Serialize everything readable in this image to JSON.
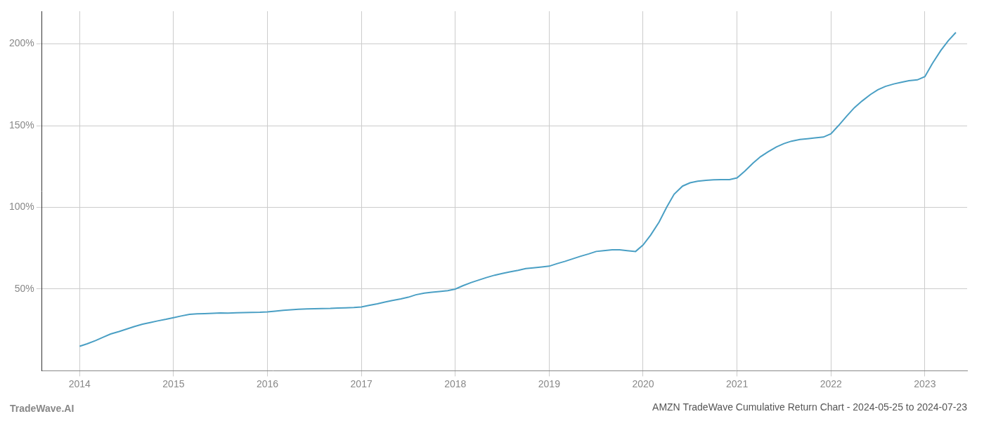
{
  "chart_data": {
    "type": "line",
    "title": "AMZN TradeWave Cumulative Return Chart - 2024-05-25 to 2024-07-23",
    "annotations": [
      "TradeWave.AI"
    ],
    "color": "#4a9fc4",
    "grid": true,
    "xlim": [
      2013.6,
      2023.45
    ],
    "xticks": [
      2014,
      2015,
      2016,
      2017,
      2018,
      2019,
      2020,
      2021,
      2022,
      2023
    ],
    "ylim": [
      0,
      220
    ],
    "yticks": [
      {
        "value": 50,
        "label": "50%"
      },
      {
        "value": 100,
        "label": "100%"
      },
      {
        "value": 150,
        "label": "150%"
      },
      {
        "value": 200,
        "label": "200%"
      }
    ],
    "x": [
      2014.0,
      2014.08,
      2014.17,
      2014.25,
      2014.33,
      2014.42,
      2014.5,
      2014.58,
      2014.67,
      2014.75,
      2014.83,
      2014.92,
      2015.0,
      2015.08,
      2015.17,
      2015.25,
      2015.33,
      2015.42,
      2015.5,
      2015.58,
      2015.67,
      2015.75,
      2015.83,
      2015.92,
      2016.0,
      2016.08,
      2016.17,
      2016.25,
      2016.33,
      2016.42,
      2016.5,
      2016.58,
      2016.67,
      2016.75,
      2016.83,
      2016.92,
      2017.0,
      2017.08,
      2017.17,
      2017.25,
      2017.33,
      2017.42,
      2017.5,
      2017.58,
      2017.67,
      2017.75,
      2017.83,
      2017.92,
      2018.0,
      2018.08,
      2018.17,
      2018.25,
      2018.33,
      2018.42,
      2018.5,
      2018.58,
      2018.67,
      2018.75,
      2018.83,
      2018.92,
      2019.0,
      2019.08,
      2019.17,
      2019.25,
      2019.33,
      2019.42,
      2019.5,
      2019.58,
      2019.67,
      2019.75,
      2019.83,
      2019.92,
      2020.0,
      2020.08,
      2020.17,
      2020.25,
      2020.33,
      2020.42,
      2020.5,
      2020.58,
      2020.67,
      2020.75,
      2020.83,
      2020.92,
      2021.0,
      2021.08,
      2021.17,
      2021.25,
      2021.33,
      2021.42,
      2021.5,
      2021.58,
      2021.67,
      2021.75,
      2021.83,
      2021.92,
      2022.0,
      2022.08,
      2022.17,
      2022.25,
      2022.33,
      2022.42,
      2022.5,
      2022.58,
      2022.67,
      2022.75,
      2022.83,
      2022.92,
      2023.0,
      2023.08,
      2023.17,
      2023.25,
      2023.33
    ],
    "values": [
      15.0,
      16.5,
      18.5,
      20.5,
      22.5,
      24.0,
      25.5,
      27.0,
      28.5,
      29.5,
      30.5,
      31.5,
      32.5,
      33.5,
      34.5,
      34.8,
      35.0,
      35.2,
      35.4,
      35.3,
      35.5,
      35.6,
      35.7,
      35.8,
      36.0,
      36.5,
      37.0,
      37.3,
      37.6,
      37.8,
      38.0,
      38.1,
      38.2,
      38.4,
      38.5,
      38.7,
      39.0,
      40.0,
      41.0,
      42.0,
      43.0,
      44.0,
      45.0,
      46.5,
      47.5,
      48.0,
      48.5,
      49.0,
      50.0,
      52.0,
      54.0,
      55.5,
      57.0,
      58.5,
      59.5,
      60.5,
      61.5,
      62.5,
      63.0,
      63.5,
      64.0,
      65.5,
      67.0,
      68.5,
      70.0,
      71.5,
      73.0,
      73.5,
      74.0,
      74.0,
      73.5,
      73.0,
      77.0,
      83.0,
      91.0,
      100.0,
      108.0,
      113.0,
      115.0,
      116.0,
      116.5,
      116.8,
      117.0,
      117.0,
      118.0,
      122.0,
      127.0,
      131.0,
      134.0,
      137.0,
      139.0,
      140.5,
      141.5,
      142.0,
      142.5,
      143.0,
      145.0,
      150.0,
      156.0,
      161.0,
      165.0,
      169.0,
      172.0,
      174.0,
      175.5,
      176.5,
      177.5,
      178.0,
      180.0,
      188.0,
      196.0,
      202.0,
      207.0
    ]
  }
}
